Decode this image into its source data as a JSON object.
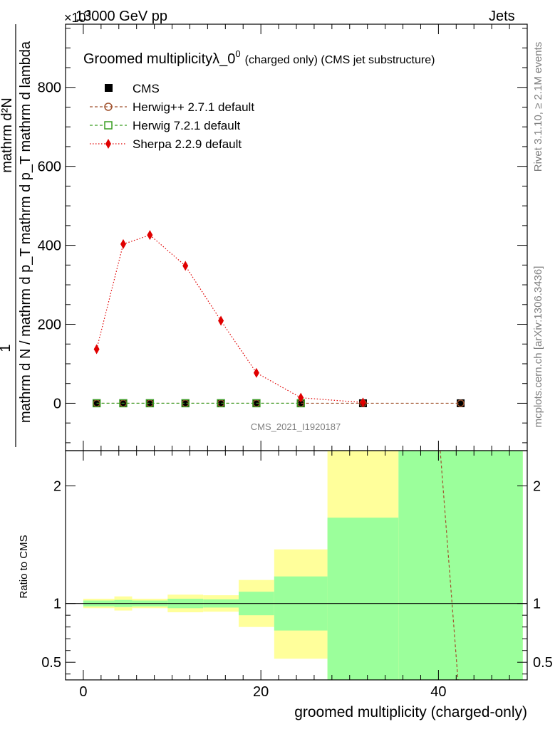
{
  "header": {
    "left": "13000 GeV pp",
    "right": "Jets",
    "multiplier": "×10",
    "multiplier_exp": "3"
  },
  "side_labels": {
    "rivet": "Rivet 3.1.10, ≥ 2.1M events",
    "mcplots": "mcplots.cern.ch [arXiv:1306.3436]"
  },
  "watermark": "CMS_2021_I1920187",
  "chart_data": [
    {
      "type": "line",
      "title": "Groomed multiplicityλ_0",
      "title_superscript": "0",
      "title_suffix": "(charged only) (CMS jet substructure)",
      "ylabel_numerator": "mathrm d²N",
      "ylabel_frac_one": "1",
      "ylabel_denominator": "mathrm d N / mathrm d p_T mathrm d p_T mathrm d lambda",
      "xlim": [
        -2,
        50
      ],
      "ylim": [
        -120,
        960
      ],
      "y_ticks": [
        0,
        200,
        400,
        600,
        800
      ],
      "y_tick_labels": [
        "0",
        "200",
        "400",
        "600",
        "800"
      ],
      "legend_placement": "top-left",
      "series": [
        {
          "name": "CMS",
          "color": "#000000",
          "marker": "square",
          "x": [
            1.5,
            4.5,
            7.5,
            11.5,
            15.5,
            19.5,
            24.5,
            31.5,
            42.5
          ],
          "y": [
            0,
            0,
            0,
            0,
            0,
            0,
            0,
            0,
            0
          ]
        },
        {
          "name": "Herwig++ 2.7.1 default",
          "color": "#a0522d",
          "marker": "circle",
          "x": [
            1.5,
            4.5,
            7.5,
            11.5,
            15.5,
            19.5,
            24.5,
            31.5,
            42.5
          ],
          "y": [
            0,
            0,
            0,
            0,
            0,
            0,
            0,
            0,
            0
          ]
        },
        {
          "name": "Herwig 7.2.1 default",
          "color": "#3a9d23",
          "marker": "open-square",
          "x": [
            1.5,
            4.5,
            7.5,
            11.5,
            15.5,
            19.5,
            24.5
          ],
          "y": [
            0,
            0,
            0,
            0,
            0,
            0,
            0
          ]
        },
        {
          "name": "Sherpa 2.2.9 default",
          "color": "#e00000",
          "marker": "diamond",
          "x": [
            1.5,
            4.5,
            7.5,
            11.5,
            15.5,
            19.5,
            24.5,
            31.5
          ],
          "y": [
            137,
            403,
            426,
            348,
            209,
            77,
            14,
            2
          ]
        }
      ]
    },
    {
      "type": "area",
      "xlabel": "groomed multiplicity (charged-only)",
      "ylabel": "Ratio to CMS",
      "xlim": [
        -2,
        50
      ],
      "ylim": [
        0.35,
        2.3
      ],
      "x_ticks": [
        0,
        20,
        40
      ],
      "x_tick_labels": [
        "0",
        "20",
        "40"
      ],
      "y_ticks": [
        0.5,
        1,
        2
      ],
      "y_tick_labels": [
        "0.5",
        "1",
        "2"
      ],
      "bins": [
        {
          "lo": 0,
          "hi": 3.5,
          "g_lo": 0.975,
          "g_hi": 1.025,
          "y_lo": 0.96,
          "y_hi": 1.04
        },
        {
          "lo": 3.5,
          "hi": 5.5,
          "g_lo": 0.97,
          "g_hi": 1.03,
          "y_lo": 0.94,
          "y_hi": 1.06
        },
        {
          "lo": 5.5,
          "hi": 9.5,
          "g_lo": 0.975,
          "g_hi": 1.025,
          "y_lo": 0.96,
          "y_hi": 1.04
        },
        {
          "lo": 9.5,
          "hi": 13.5,
          "g_lo": 0.96,
          "g_hi": 1.04,
          "y_lo": 0.925,
          "y_hi": 1.075
        },
        {
          "lo": 13.5,
          "hi": 17.5,
          "g_lo": 0.965,
          "g_hi": 1.035,
          "y_lo": 0.93,
          "y_hi": 1.07
        },
        {
          "lo": 17.5,
          "hi": 21.5,
          "g_lo": 0.9,
          "g_hi": 1.1,
          "y_lo": 0.8,
          "y_hi": 1.2
        },
        {
          "lo": 21.5,
          "hi": 27.5,
          "g_lo": 0.77,
          "g_hi": 1.23,
          "y_lo": 0.53,
          "y_hi": 1.46
        },
        {
          "lo": 27.5,
          "hi": 35.5,
          "g_lo": 0.35,
          "g_hi": 1.73,
          "y_lo": 0.35,
          "y_hi": 2.3
        },
        {
          "lo": 35.5,
          "hi": 49.5,
          "g_lo": 0.35,
          "g_hi": 2.3,
          "y_lo": 0.35,
          "y_hi": 2.3
        }
      ],
      "ratio_lines": [
        {
          "name": "Herwig++ 2.7.1 default",
          "color": "#a0522d",
          "x": [
            40.2,
            42.2
          ],
          "y": [
            2.3,
            0.35
          ]
        }
      ],
      "band_colors": {
        "green": "#9bff9b",
        "yellow": "#ffff9b"
      }
    }
  ]
}
